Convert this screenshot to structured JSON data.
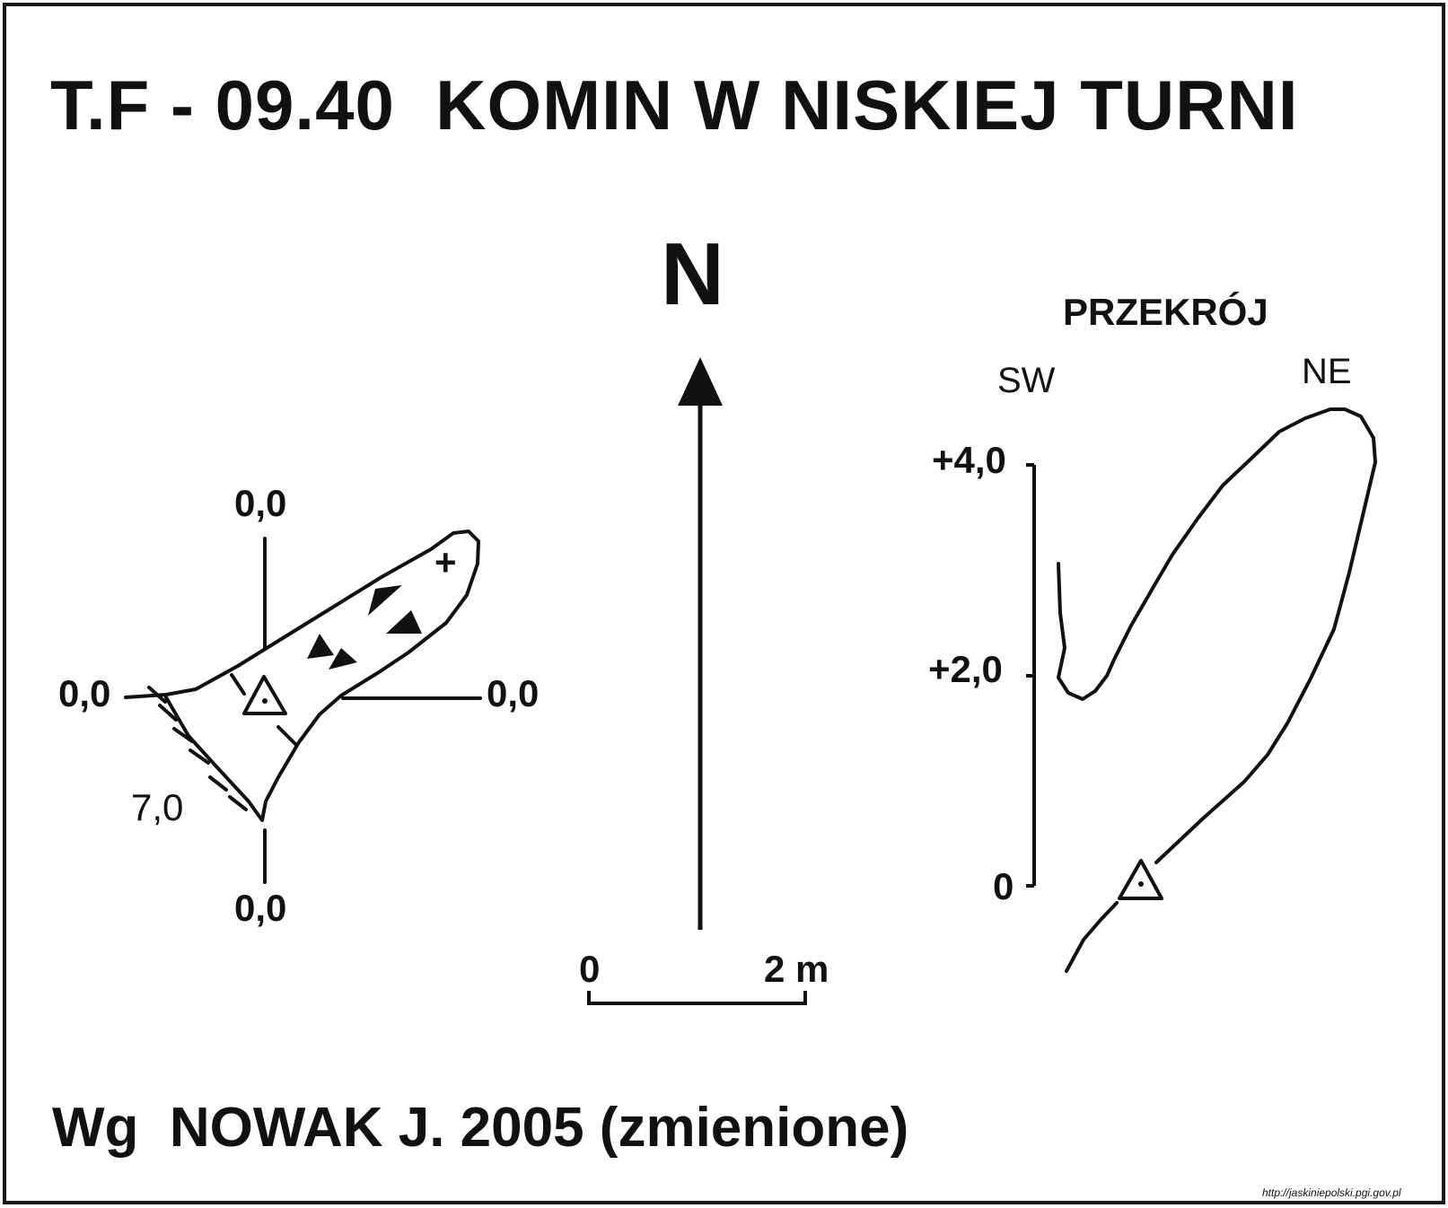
{
  "title": "T.F - 09.40  KOMIN W NISKIEJ TURNI",
  "footer": "Wg  NOWAK J. 2005 (zmienione)",
  "source_url": "http://jaskiniepolski.pgi.gov.pl",
  "north_label": "N",
  "plan": {
    "label_top": "0,0",
    "label_left": "0,0",
    "label_right": "0,0",
    "label_bottom": "0,0",
    "label_depth": "7,0",
    "plus_mark": "+"
  },
  "scale_bar": {
    "start_label": "0",
    "end_label": "2 m"
  },
  "section": {
    "title": "PRZEKRÓJ",
    "dir_left": "SW",
    "dir_right": "NE",
    "level_top": "+4,0",
    "level_mid": "+2,0",
    "level_zero": "0"
  },
  "colors": {
    "ink": "#111111",
    "paper": "#ffffff"
  }
}
